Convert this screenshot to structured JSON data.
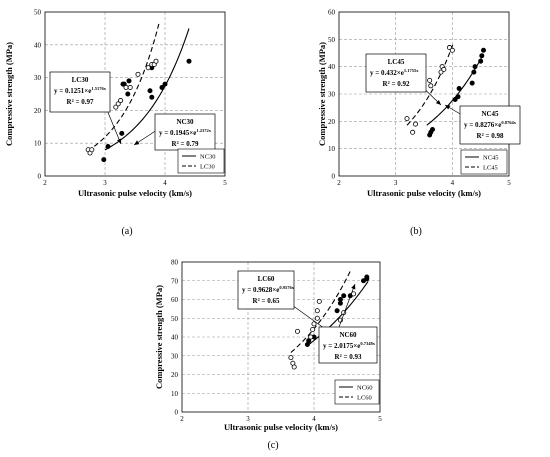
{
  "chart_data": [
    {
      "type": "scatter",
      "panel_label": "(a)",
      "xlabel": "Ultrasonic pulse velocity (km/s)",
      "ylabel": "Compressive strength (MPa)",
      "xlim": [
        2,
        5
      ],
      "ylim": [
        0,
        50
      ],
      "xticks": [
        "2",
        "3",
        "4",
        "5"
      ],
      "yticks": [
        "0",
        "10",
        "20",
        "30",
        "40",
        "50"
      ],
      "grid": "dashed",
      "legend": {
        "position": "bottom-right",
        "entries": [
          "NC30",
          "LC30"
        ]
      },
      "series": [
        {
          "name": "NC30",
          "marker": "filled-circle",
          "line": "solid",
          "points": [
            [
              2.98,
              5
            ],
            [
              3.05,
              9
            ],
            [
              3.28,
              13
            ],
            [
              3.3,
              28
            ],
            [
              3.32,
              28
            ],
            [
              3.38,
              25
            ],
            [
              3.4,
              29
            ],
            [
              3.75,
              26
            ],
            [
              3.78,
              24
            ],
            [
              3.78,
              33
            ],
            [
              3.95,
              27
            ],
            [
              4.0,
              28
            ],
            [
              4.4,
              35
            ]
          ],
          "fit": {
            "a": 0.1945,
            "b": 1.2372,
            "x_range": [
              3.0,
              4.4
            ]
          }
        },
        {
          "name": "LC30",
          "marker": "open-circle",
          "line": "dashed",
          "points": [
            [
              2.72,
              8
            ],
            [
              2.75,
              7
            ],
            [
              2.78,
              8
            ],
            [
              3.18,
              21
            ],
            [
              3.22,
              22
            ],
            [
              3.26,
              23
            ],
            [
              3.35,
              27
            ],
            [
              3.42,
              27
            ],
            [
              3.55,
              31
            ],
            [
              3.72,
              33
            ],
            [
              3.78,
              34
            ],
            [
              3.82,
              34
            ],
            [
              3.85,
              35
            ]
          ],
          "fit": {
            "a": 0.1251,
            "b": 1.5176,
            "x_range": [
              2.82,
              3.9
            ]
          }
        }
      ],
      "annotations": [
        {
          "title": "LC30",
          "equation": "y = 0.1251×e",
          "exponent": "1.5176x",
          "r2": "R² = 0.97"
        },
        {
          "title": "NC30",
          "equation": "y = 0.1945×e",
          "exponent": "1.2372x",
          "r2": "R² = 0.79"
        }
      ]
    },
    {
      "type": "scatter",
      "panel_label": "(b)",
      "xlabel": "Ultrasonic pulse velocity (km/s)",
      "ylabel": "Compressive strength (MPa)",
      "xlim": [
        2,
        5
      ],
      "ylim": [
        0,
        60
      ],
      "xticks": [
        "2",
        "3",
        "4",
        "5"
      ],
      "yticks": [
        "0",
        "10",
        "20",
        "30",
        "40",
        "50",
        "60"
      ],
      "grid": "dashed",
      "legend": {
        "position": "bottom-right",
        "entries": [
          "NC45",
          "LC45"
        ]
      },
      "series": [
        {
          "name": "NC45",
          "marker": "filled-circle",
          "line": "solid",
          "points": [
            [
              3.6,
              15
            ],
            [
              3.62,
              16
            ],
            [
              3.65,
              17
            ],
            [
              4.05,
              28
            ],
            [
              4.1,
              29
            ],
            [
              4.12,
              32
            ],
            [
              4.35,
              34
            ],
            [
              4.38,
              38
            ],
            [
              4.4,
              40
            ],
            [
              4.5,
              42
            ],
            [
              4.52,
              44
            ],
            [
              4.55,
              46
            ]
          ],
          "fit": {
            "a": 0.8276,
            "b": 0.8764,
            "x_range": [
              3.55,
              4.55
            ]
          }
        },
        {
          "name": "LC45",
          "marker": "open-circle",
          "line": "dashed",
          "points": [
            [
              3.2,
              21
            ],
            [
              3.3,
              16
            ],
            [
              3.35,
              19
            ],
            [
              3.6,
              35
            ],
            [
              3.62,
              33
            ],
            [
              3.8,
              38
            ],
            [
              3.82,
              40
            ],
            [
              3.85,
              39
            ],
            [
              3.95,
              47
            ],
            [
              4.0,
              46
            ]
          ],
          "fit": {
            "a": 0.432,
            "b": 1.1755,
            "x_range": [
              3.2,
              4.02
            ]
          }
        }
      ],
      "annotations": [
        {
          "title": "LC45",
          "equation": "y = 0.432×e",
          "exponent": "1.1755x",
          "r2": "R² = 0.92"
        },
        {
          "title": "NC45",
          "equation": "y = 0.8276×e",
          "exponent": "0.8764x",
          "r2": "R² = 0.98"
        }
      ]
    },
    {
      "type": "scatter",
      "panel_label": "(c)",
      "xlabel": "Ultrasonic pulse velocity (km/s)",
      "ylabel": "Compressive strength (MPa)",
      "xlim": [
        2,
        5
      ],
      "ylim": [
        0,
        80
      ],
      "xticks": [
        "2",
        "3",
        "4",
        "5"
      ],
      "yticks": [
        "0",
        "10",
        "20",
        "30",
        "40",
        "50",
        "60",
        "70",
        "80"
      ],
      "grid": "dashed",
      "legend": {
        "position": "bottom-right",
        "entries": [
          "NC60",
          "LC60"
        ]
      },
      "series": [
        {
          "name": "NC60",
          "marker": "filled-circle",
          "line": "solid",
          "points": [
            [
              3.9,
              36
            ],
            [
              3.92,
              38
            ],
            [
              4.0,
              40
            ],
            [
              4.35,
              54
            ],
            [
              4.4,
              58
            ],
            [
              4.4,
              60
            ],
            [
              4.45,
              62
            ],
            [
              4.55,
              62
            ],
            [
              4.75,
              70
            ],
            [
              4.8,
              71
            ],
            [
              4.8,
              72
            ]
          ],
          "fit": {
            "a": 2.0175,
            "b": 0.7348,
            "x_range": [
              3.9,
              4.82
            ]
          }
        },
        {
          "name": "LC60",
          "marker": "open-circle",
          "line": "dashed",
          "points": [
            [
              3.65,
              29
            ],
            [
              3.68,
              26
            ],
            [
              3.7,
              24
            ],
            [
              3.75,
              43
            ],
            [
              3.95,
              40
            ],
            [
              3.98,
              44
            ],
            [
              4.0,
              47
            ],
            [
              4.05,
              50
            ],
            [
              4.05,
              54
            ],
            [
              4.08,
              59
            ],
            [
              4.4,
              49
            ],
            [
              4.45,
              53
            ],
            [
              4.6,
              63
            ]
          ],
          "fit": {
            "a": 0.9628,
            "b": 0.9576,
            "x_range": [
              3.65,
              4.55
            ]
          }
        }
      ],
      "annotations": [
        {
          "title": "LC60",
          "equation": "y = 0.9628×e",
          "exponent": "0.9576x",
          "r2": "R² = 0.65"
        },
        {
          "title": "NC60",
          "equation": "y = 2.0175×e",
          "exponent": "0.7348x",
          "r2": "R² = 0.93"
        }
      ]
    }
  ]
}
